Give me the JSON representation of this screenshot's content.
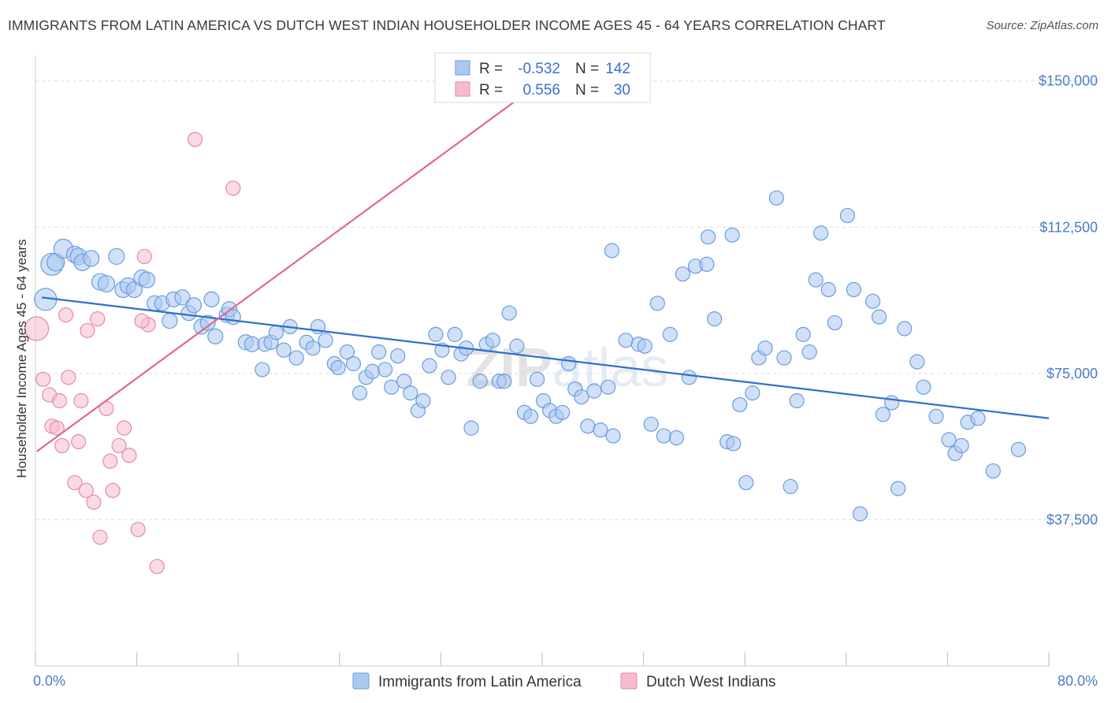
{
  "title": "IMMIGRANTS FROM LATIN AMERICA VS DUTCH WEST INDIAN HOUSEHOLDER INCOME AGES 45 - 64 YEARS CORRELATION CHART",
  "source": "Source: ZipAtlas.com",
  "watermark": "ZIPatlas",
  "legend_top": [
    {
      "r_label": "R =",
      "r_value": "-0.532",
      "n_label": "N =",
      "n_value": "142",
      "color": "#a9c8f0",
      "stroke": "#6a9be0"
    },
    {
      "r_label": "R =",
      "r_value": "0.556",
      "n_label": "N =",
      "n_value": "30",
      "color": "#f6bccd",
      "stroke": "#e58aa6"
    }
  ],
  "legend_bottom": [
    "Immigrants from Latin America",
    "Dutch West Indians"
  ],
  "chart_data": {
    "type": "scatter",
    "xlabel": "",
    "ylabel": "Householder Income Ages 45 - 64 years",
    "xlim": [
      0,
      80
    ],
    "ylim": [
      0,
      155000
    ],
    "x_tick_labels": [
      "0.0%",
      "80.0%"
    ],
    "y_ticks": [
      37500,
      75000,
      112500,
      150000
    ],
    "y_tick_labels": [
      "$37,500",
      "$75,000",
      "$112,500",
      "$150,000"
    ],
    "grid": true,
    "series": [
      {
        "name": "Immigrants from Latin America",
        "color": "#a9c8f0",
        "stroke": "#6a9be0",
        "trend": {
          "x": [
            0.5,
            80
          ],
          "y": [
            94500,
            63500
          ],
          "color": "#2f6fcc"
        },
        "points": [
          [
            0.8,
            94000,
            20
          ],
          [
            1.3,
            103000,
            20
          ],
          [
            1.6,
            103500,
            14
          ],
          [
            2.2,
            107000,
            16
          ],
          [
            3.1,
            105500,
            13
          ],
          [
            3.4,
            105000,
            13
          ],
          [
            3.7,
            103500,
            13
          ],
          [
            4.4,
            104500,
            12
          ],
          [
            5.1,
            98500,
            13
          ],
          [
            5.6,
            98000,
            13
          ],
          [
            6.4,
            105000,
            12
          ],
          [
            6.9,
            96500,
            12
          ],
          [
            7.3,
            97500,
            12
          ],
          [
            7.8,
            96500,
            12
          ],
          [
            8.4,
            99500,
            12
          ],
          [
            8.8,
            99000,
            12
          ],
          [
            9.4,
            93000,
            11
          ],
          [
            10.0,
            93000,
            11
          ],
          [
            10.6,
            88500,
            11
          ],
          [
            10.9,
            94000,
            11
          ],
          [
            11.6,
            94500,
            11
          ],
          [
            12.1,
            90500,
            11
          ],
          [
            12.5,
            92500,
            11
          ],
          [
            13.1,
            87000,
            11
          ],
          [
            13.6,
            88000,
            11
          ],
          [
            13.9,
            94000,
            11
          ],
          [
            14.2,
            84500,
            11
          ],
          [
            15.1,
            90000,
            11
          ],
          [
            15.3,
            91500,
            11
          ],
          [
            15.6,
            89500,
            11
          ],
          [
            16.6,
            83000,
            11
          ],
          [
            17.1,
            82500,
            11
          ],
          [
            17.9,
            76000,
            10
          ],
          [
            18.1,
            82500,
            10
          ],
          [
            18.6,
            83000,
            10
          ],
          [
            19.0,
            85500,
            10
          ],
          [
            19.6,
            81000,
            10
          ],
          [
            20.1,
            87000,
            10
          ],
          [
            20.6,
            79000,
            10
          ],
          [
            21.4,
            83000,
            10
          ],
          [
            21.9,
            81500,
            10
          ],
          [
            22.3,
            87000,
            10
          ],
          [
            22.9,
            83500,
            10
          ],
          [
            23.6,
            77500,
            10
          ],
          [
            23.9,
            76500,
            10
          ],
          [
            24.6,
            80500,
            10
          ],
          [
            25.1,
            77500,
            10
          ],
          [
            25.6,
            70000,
            10
          ],
          [
            26.1,
            74000,
            10
          ],
          [
            26.6,
            75500,
            10
          ],
          [
            27.1,
            80500,
            10
          ],
          [
            27.6,
            76000,
            10
          ],
          [
            28.1,
            71500,
            10
          ],
          [
            28.6,
            79500,
            10
          ],
          [
            29.1,
            73000,
            10
          ],
          [
            29.6,
            70000,
            10
          ],
          [
            30.2,
            65500,
            10
          ],
          [
            30.6,
            68000,
            10
          ],
          [
            31.1,
            77000,
            10
          ],
          [
            31.6,
            85000,
            10
          ],
          [
            32.1,
            81000,
            10
          ],
          [
            32.6,
            74000,
            10
          ],
          [
            33.1,
            85000,
            10
          ],
          [
            33.6,
            80000,
            10
          ],
          [
            34.0,
            81500,
            10
          ],
          [
            34.4,
            61000,
            10
          ],
          [
            35.1,
            73000,
            10
          ],
          [
            35.6,
            82500,
            10
          ],
          [
            36.1,
            83500,
            10
          ],
          [
            36.6,
            73000,
            10
          ],
          [
            37.0,
            73000,
            10
          ],
          [
            37.4,
            90500,
            10
          ],
          [
            38.0,
            82000,
            10
          ],
          [
            38.6,
            65000,
            10
          ],
          [
            39.1,
            64000,
            10
          ],
          [
            39.6,
            73500,
            10
          ],
          [
            40.1,
            68000,
            10
          ],
          [
            40.6,
            65500,
            10
          ],
          [
            41.1,
            64000,
            10
          ],
          [
            41.6,
            65000,
            10
          ],
          [
            42.1,
            77500,
            10
          ],
          [
            42.6,
            71000,
            10
          ],
          [
            43.1,
            69000,
            10
          ],
          [
            43.6,
            61500,
            10
          ],
          [
            44.1,
            70500,
            10
          ],
          [
            44.6,
            60500,
            10
          ],
          [
            45.2,
            71500,
            10
          ],
          [
            45.6,
            59000,
            10
          ],
          [
            46.6,
            83500,
            10
          ],
          [
            47.6,
            82500,
            10
          ],
          [
            48.1,
            82000,
            10
          ],
          [
            48.6,
            62000,
            10
          ],
          [
            49.1,
            93000,
            10
          ],
          [
            49.6,
            59000,
            10
          ],
          [
            50.1,
            85000,
            10
          ],
          [
            50.6,
            58500,
            10
          ],
          [
            51.1,
            100500,
            10
          ],
          [
            51.6,
            74000,
            10
          ],
          [
            52.1,
            102500,
            10
          ],
          [
            53.1,
            110000,
            10
          ],
          [
            53.6,
            89000,
            10
          ],
          [
            54.6,
            57500,
            10
          ],
          [
            55.1,
            57000,
            10
          ],
          [
            55.6,
            67000,
            10
          ],
          [
            56.1,
            47000,
            10
          ],
          [
            56.6,
            70000,
            10
          ],
          [
            57.1,
            79000,
            10
          ],
          [
            57.6,
            81500,
            10
          ],
          [
            59.1,
            79000,
            10
          ],
          [
            59.6,
            46000,
            10
          ],
          [
            60.1,
            68000,
            10
          ],
          [
            60.6,
            85000,
            10
          ],
          [
            61.1,
            80500,
            10
          ],
          [
            61.6,
            99000,
            10
          ],
          [
            62.6,
            96500,
            10
          ],
          [
            63.1,
            88000,
            10
          ],
          [
            64.1,
            115500,
            10
          ],
          [
            64.6,
            96500,
            10
          ],
          [
            65.1,
            39000,
            10
          ],
          [
            66.1,
            93500,
            10
          ],
          [
            66.6,
            89500,
            10
          ],
          [
            66.9,
            64500,
            10
          ],
          [
            68.1,
            45500,
            10
          ],
          [
            68.6,
            86500,
            10
          ],
          [
            69.6,
            78000,
            10
          ],
          [
            70.1,
            71500,
            10
          ],
          [
            71.1,
            64000,
            10
          ],
          [
            72.1,
            58000,
            10
          ],
          [
            72.6,
            54500,
            10
          ],
          [
            73.1,
            56500,
            10
          ],
          [
            73.6,
            62500,
            10
          ],
          [
            74.4,
            63500,
            10
          ],
          [
            75.6,
            50000,
            10
          ],
          [
            77.6,
            55500,
            10
          ],
          [
            62.0,
            111000,
            10
          ],
          [
            55.0,
            110500,
            10
          ],
          [
            45.5,
            106500,
            10
          ],
          [
            58.5,
            120000,
            10
          ],
          [
            53.0,
            103000,
            10
          ],
          [
            67.6,
            67500,
            10
          ]
        ]
      },
      {
        "name": "Dutch West Indians",
        "color": "#f6bccd",
        "stroke": "#e58aa6",
        "trend": {
          "x": [
            0.1,
            39
          ],
          "y": [
            55000,
            147500
          ],
          "color": "#e4668f"
        },
        "points": [
          [
            0.1,
            86500,
            22
          ],
          [
            0.6,
            73500,
            10
          ],
          [
            1.1,
            69500,
            10
          ],
          [
            1.3,
            61500,
            10
          ],
          [
            1.7,
            61000,
            10
          ],
          [
            1.9,
            68000,
            10
          ],
          [
            2.1,
            56500,
            10
          ],
          [
            2.4,
            90000,
            10
          ],
          [
            2.6,
            74000,
            10
          ],
          [
            3.4,
            57500,
            10
          ],
          [
            3.6,
            68000,
            10
          ],
          [
            3.1,
            47000,
            10
          ],
          [
            4.0,
            45000,
            10
          ],
          [
            4.1,
            86000,
            10
          ],
          [
            4.6,
            42000,
            10
          ],
          [
            4.9,
            89000,
            10
          ],
          [
            5.1,
            33000,
            10
          ],
          [
            5.6,
            66000,
            10
          ],
          [
            5.9,
            52500,
            10
          ],
          [
            6.1,
            45000,
            10
          ],
          [
            6.6,
            56500,
            10
          ],
          [
            7.0,
            61000,
            10
          ],
          [
            7.4,
            54000,
            10
          ],
          [
            8.1,
            35000,
            10
          ],
          [
            8.6,
            105000,
            10
          ],
          [
            8.9,
            87500,
            10
          ],
          [
            9.6,
            25500,
            10
          ],
          [
            12.6,
            135000,
            10
          ],
          [
            15.6,
            122500,
            10
          ],
          [
            8.4,
            88500,
            10
          ]
        ]
      }
    ]
  }
}
